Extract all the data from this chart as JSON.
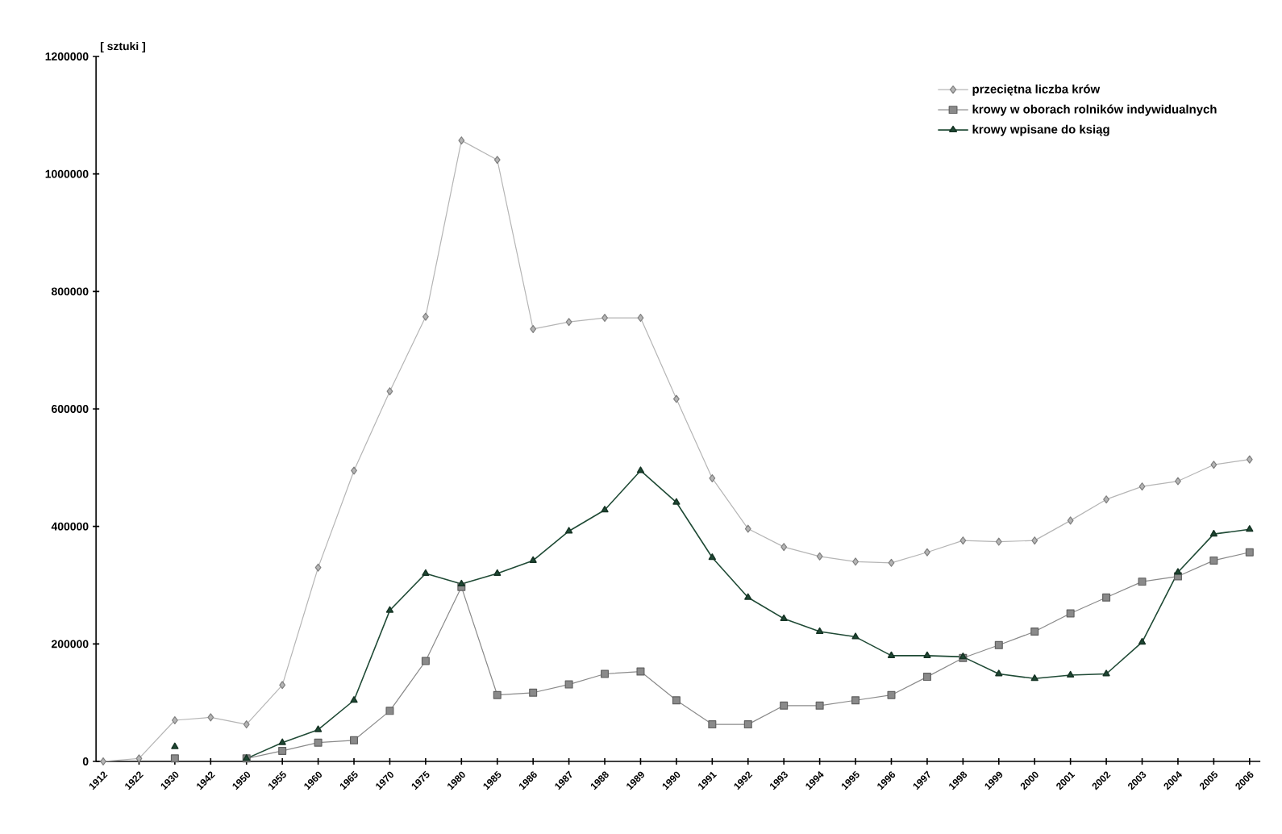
{
  "chart_data": {
    "type": "line",
    "ylabel": "[ sztuki ]",
    "categories": [
      "1912",
      "1922",
      "1930",
      "1942",
      "1950",
      "1955",
      "1960",
      "1965",
      "1970",
      "1975",
      "1980",
      "1985",
      "1986",
      "1987",
      "1988",
      "1989",
      "1990",
      "1991",
      "1992",
      "1993",
      "1994",
      "1995",
      "1996",
      "1997",
      "1998",
      "1999",
      "2000",
      "2001",
      "2002",
      "2003",
      "2004",
      "2005",
      "2006"
    ],
    "series": [
      {
        "name": "przeciętna liczba krów",
        "color": "#b5b5b5",
        "marker": "diamond",
        "values": [
          0,
          5000,
          70000,
          75000,
          63000,
          130000,
          330000,
          495000,
          630000,
          757000,
          1057000,
          1024000,
          736000,
          748000,
          755000,
          755000,
          617000,
          482000,
          396000,
          365000,
          349000,
          340000,
          338000,
          356000,
          376000,
          374000,
          376000,
          410000,
          446000,
          468000,
          477000,
          505000,
          514000
        ]
      },
      {
        "name": "krowy w oborach rolników indywidualnych",
        "color": "#8a8a8a",
        "marker": "square",
        "values": [
          null,
          null,
          5000,
          null,
          5000,
          18000,
          32000,
          36000,
          86000,
          171000,
          297000,
          113000,
          117000,
          131000,
          149000,
          153000,
          104000,
          63000,
          63000,
          95000,
          95000,
          104000,
          113000,
          144000,
          176000,
          198000,
          221000,
          252000,
          279000,
          306000,
          315000,
          342000,
          356000
        ]
      },
      {
        "name": "krowy wpisane do ksiąg",
        "color": "#1f4a35",
        "marker": "triangle",
        "values": [
          null,
          null,
          25000,
          null,
          5000,
          32000,
          54000,
          104000,
          257000,
          320000,
          302000,
          320000,
          342000,
          392000,
          428000,
          495000,
          441000,
          347000,
          279000,
          243000,
          221000,
          212000,
          180000,
          180000,
          178000,
          149000,
          141000,
          147000,
          149000,
          203000,
          322000,
          387000,
          395000
        ]
      }
    ],
    "ylim": [
      0,
      1200000
    ],
    "yticks": [
      0,
      200000,
      400000,
      600000,
      800000,
      1000000,
      1200000
    ],
    "legend": "top right",
    "grid": false
  }
}
